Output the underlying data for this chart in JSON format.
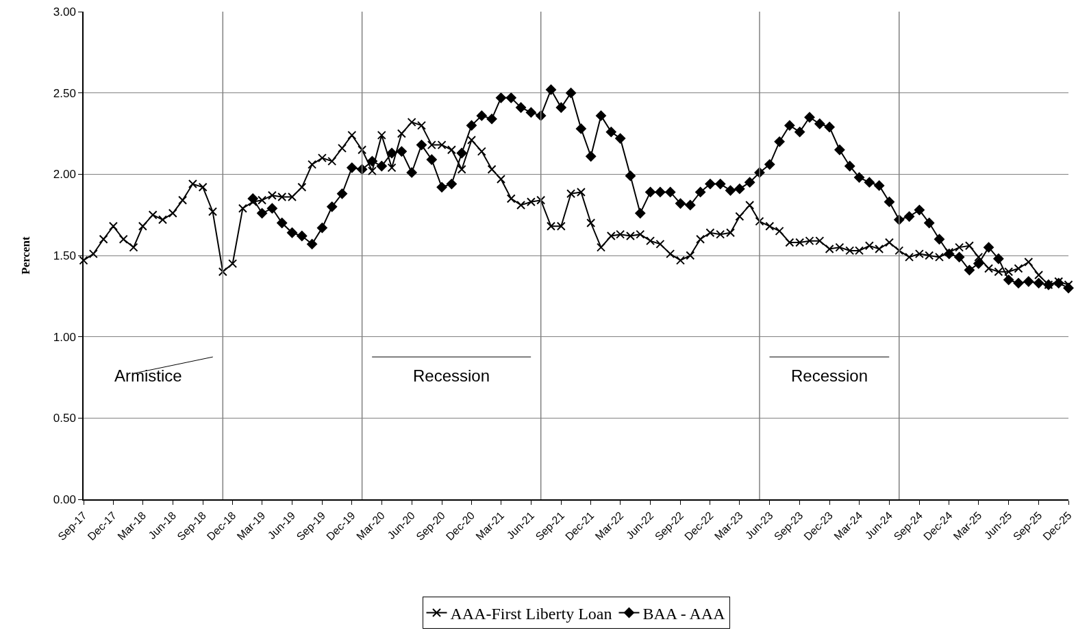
{
  "chart_data": {
    "type": "line",
    "ylabel": "Percent",
    "x": [
      "1917-09",
      "1917-10",
      "1917-11",
      "1917-12",
      "1918-01",
      "1918-02",
      "1918-03",
      "1918-04",
      "1918-05",
      "1918-06",
      "1918-07",
      "1918-08",
      "1918-09",
      "1918-10",
      "1918-11",
      "1918-12",
      "1919-01",
      "1919-02",
      "1919-03",
      "1919-04",
      "1919-05",
      "1919-06",
      "1919-07",
      "1919-08",
      "1919-09",
      "1919-10",
      "1919-11",
      "1919-12",
      "1920-01",
      "1920-02",
      "1920-03",
      "1920-04",
      "1920-05",
      "1920-06",
      "1920-07",
      "1920-08",
      "1920-09",
      "1920-10",
      "1920-11",
      "1920-12",
      "1921-01",
      "1921-02",
      "1921-03",
      "1921-04",
      "1921-05",
      "1921-06",
      "1921-07",
      "1921-08",
      "1921-09",
      "1921-10",
      "1921-11",
      "1921-12",
      "1922-01",
      "1922-02",
      "1922-03",
      "1922-04",
      "1922-05",
      "1922-06",
      "1922-07",
      "1922-08",
      "1922-09",
      "1922-10",
      "1922-11",
      "1922-12",
      "1923-01",
      "1923-02",
      "1923-03",
      "1923-04",
      "1923-05",
      "1923-06",
      "1923-07",
      "1923-08",
      "1923-09",
      "1923-10",
      "1923-11",
      "1923-12",
      "1924-01",
      "1924-02",
      "1924-03",
      "1924-04",
      "1924-05",
      "1924-06",
      "1924-07",
      "1924-08",
      "1924-09",
      "1924-10",
      "1924-11",
      "1924-12",
      "1925-01",
      "1925-02",
      "1925-03",
      "1925-04",
      "1925-05",
      "1925-06",
      "1925-07",
      "1925-08",
      "1925-09",
      "1925-10",
      "1925-11",
      "1925-12"
    ],
    "series": [
      {
        "name": "AAA-First Liberty Loan",
        "color": "#000000",
        "marker": "cross",
        "values": [
          1.47,
          1.51,
          1.6,
          1.68,
          1.6,
          1.55,
          1.68,
          1.75,
          1.72,
          1.76,
          1.84,
          1.94,
          1.92,
          1.77,
          1.4,
          1.45,
          1.79,
          1.83,
          1.84,
          1.87,
          1.86,
          1.86,
          1.92,
          2.06,
          2.1,
          2.08,
          2.16,
          2.24,
          2.15,
          2.02,
          2.24,
          2.04,
          2.25,
          2.32,
          2.3,
          2.18,
          2.18,
          2.15,
          2.03,
          2.21,
          2.14,
          2.03,
          1.97,
          1.85,
          1.81,
          1.83,
          1.84,
          1.68,
          1.68,
          1.88,
          1.89,
          1.7,
          1.55,
          1.62,
          1.63,
          1.62,
          1.63,
          1.59,
          1.57,
          1.51,
          1.47,
          1.5,
          1.6,
          1.64,
          1.63,
          1.64,
          1.74,
          1.81,
          1.71,
          1.68,
          1.65,
          1.58,
          1.58,
          1.59,
          1.59,
          1.54,
          1.55,
          1.53,
          1.53,
          1.56,
          1.54,
          1.58,
          1.53,
          1.49,
          1.51,
          1.5,
          1.49,
          1.52,
          1.55,
          1.56,
          1.49,
          1.42,
          1.4,
          1.4,
          1.42,
          1.46,
          1.38,
          1.32,
          1.34,
          1.32
        ]
      },
      {
        "name": "BAA - AAA",
        "color": "#000000",
        "marker": "diamond",
        "values": [
          null,
          null,
          null,
          null,
          null,
          null,
          null,
          null,
          null,
          null,
          null,
          null,
          null,
          null,
          null,
          null,
          null,
          1.85,
          1.76,
          1.79,
          1.7,
          1.64,
          1.62,
          1.57,
          1.67,
          1.8,
          1.88,
          2.04,
          2.03,
          2.08,
          2.05,
          2.13,
          2.14,
          2.01,
          2.18,
          2.09,
          1.92,
          1.94,
          2.13,
          2.3,
          2.36,
          2.34,
          2.47,
          2.47,
          2.41,
          2.38,
          2.36,
          2.52,
          2.41,
          2.5,
          2.28,
          2.11,
          2.36,
          2.26,
          2.22,
          1.99,
          1.76,
          1.89,
          1.89,
          1.89,
          1.82,
          1.81,
          1.89,
          1.94,
          1.94,
          1.9,
          1.91,
          1.95,
          2.01,
          2.06,
          2.2,
          2.3,
          2.26,
          2.35,
          2.31,
          2.29,
          2.15,
          2.05,
          1.98,
          1.95,
          1.93,
          1.83,
          1.72,
          1.74,
          1.78,
          1.7,
          1.6,
          1.51,
          1.49,
          1.41,
          1.45,
          1.55,
          1.48,
          1.35,
          1.33,
          1.34,
          1.33,
          1.32,
          1.33,
          1.3
        ]
      }
    ],
    "xlim": [
      "1917-09",
      "1925-12"
    ],
    "xticks": [
      {
        "value": "1917-09",
        "label": "Sep-17"
      },
      {
        "value": "1917-12",
        "label": "Dec-17"
      },
      {
        "value": "1918-03",
        "label": "Mar-18"
      },
      {
        "value": "1918-06",
        "label": "Jun-18"
      },
      {
        "value": "1918-09",
        "label": "Sep-18"
      },
      {
        "value": "1918-12",
        "label": "Dec-18"
      },
      {
        "value": "1919-03",
        "label": "Mar-19"
      },
      {
        "value": "1919-06",
        "label": "Jun-19"
      },
      {
        "value": "1919-09",
        "label": "Sep-19"
      },
      {
        "value": "1919-12",
        "label": "Dec-19"
      },
      {
        "value": "1920-03",
        "label": "Mar-20"
      },
      {
        "value": "1920-06",
        "label": "Jun-20"
      },
      {
        "value": "1920-09",
        "label": "Sep-20"
      },
      {
        "value": "1920-12",
        "label": "Dec-20"
      },
      {
        "value": "1921-03",
        "label": "Mar-21"
      },
      {
        "value": "1921-06",
        "label": "Jun-21"
      },
      {
        "value": "1921-09",
        "label": "Sep-21"
      },
      {
        "value": "1921-12",
        "label": "Dec-21"
      },
      {
        "value": "1922-03",
        "label": "Mar-22"
      },
      {
        "value": "1922-06",
        "label": "Jun-22"
      },
      {
        "value": "1922-09",
        "label": "Sep-22"
      },
      {
        "value": "1922-12",
        "label": "Dec-22"
      },
      {
        "value": "1923-03",
        "label": "Mar-23"
      },
      {
        "value": "1923-06",
        "label": "Jun-23"
      },
      {
        "value": "1923-09",
        "label": "Sep-23"
      },
      {
        "value": "1923-12",
        "label": "Dec-23"
      },
      {
        "value": "1924-03",
        "label": "Mar-24"
      },
      {
        "value": "1924-06",
        "label": "Jun-24"
      },
      {
        "value": "1924-09",
        "label": "Sep-24"
      },
      {
        "value": "1924-12",
        "label": "Dec-24"
      },
      {
        "value": "1925-03",
        "label": "Mar-25"
      },
      {
        "value": "1925-06",
        "label": "Jun-25"
      },
      {
        "value": "1925-09",
        "label": "Sep-25"
      },
      {
        "value": "1925-12",
        "label": "Dec-25"
      }
    ],
    "ylim": [
      0,
      3
    ],
    "yticks": [
      {
        "value": 0,
        "label": "0.00"
      },
      {
        "value": 0.5,
        "label": "0.50"
      },
      {
        "value": 1,
        "label": "1.00"
      },
      {
        "value": 1.5,
        "label": "1.50"
      },
      {
        "value": 2,
        "label": "2.00"
      },
      {
        "value": 2.5,
        "label": "2.50"
      },
      {
        "value": 3,
        "label": "3.00"
      }
    ],
    "ref_lines": [
      {
        "axis": "x",
        "value": "1918-11",
        "color": "#808080"
      },
      {
        "axis": "x",
        "value": "1920-01",
        "color": "#808080"
      },
      {
        "axis": "x",
        "value": "1921-07",
        "color": "#808080"
      },
      {
        "axis": "x",
        "value": "1923-05",
        "color": "#808080"
      },
      {
        "axis": "x",
        "value": "1924-07",
        "color": "#808080"
      }
    ],
    "annotations": [
      "Armistice",
      "Recession",
      "Recession"
    ],
    "grid": "y",
    "legend": "bottom",
    "line_style": "solid"
  }
}
